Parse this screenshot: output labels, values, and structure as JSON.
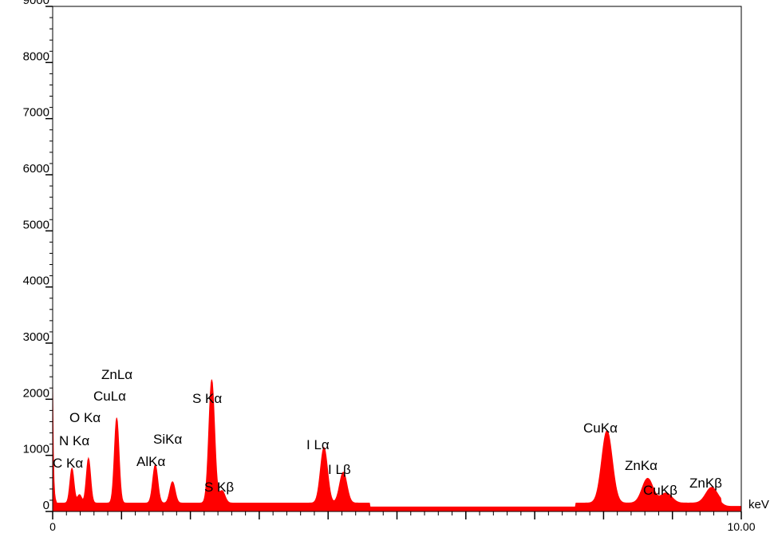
{
  "chart_data": {
    "type": "area",
    "title": "",
    "xlabel": "keV",
    "ylabel": "",
    "xlim": [
      0,
      10
    ],
    "ylim": [
      0,
      9000
    ],
    "y_ticks": [
      {
        "value": 0,
        "label": "0"
      },
      {
        "value": 1000,
        "label": "1000"
      },
      {
        "value": 2000,
        "label": "2000"
      },
      {
        "value": 3000,
        "label": "3000"
      },
      {
        "value": 4000,
        "label": "4000"
      },
      {
        "value": 5000,
        "label": "5000"
      },
      {
        "value": 6000,
        "label": "6000"
      },
      {
        "value": 7000,
        "label": "7000"
      },
      {
        "value": 8000,
        "label": "8000"
      },
      {
        "value": 9000,
        "label": "9000"
      }
    ],
    "x_tick_labels": [
      {
        "value": 0,
        "label": "0"
      },
      {
        "value": 10,
        "label": "10.00"
      }
    ],
    "x_unit_label": "keV",
    "grid": false,
    "color": "#ff0000",
    "baseline": 150,
    "peaks": [
      {
        "label": "C Kα",
        "energy": 0.28,
        "counts": 620
      },
      {
        "label": "N Kα",
        "energy": 0.39,
        "counts": 150
      },
      {
        "label": "O Kα",
        "energy": 0.52,
        "counts": 800
      },
      {
        "label": "ZnLα",
        "energy": 1.01,
        "counts": 0
      },
      {
        "label": "CuLα",
        "energy": 0.93,
        "counts": 1520
      },
      {
        "label": "AlKα",
        "energy": 1.49,
        "counts": 680
      },
      {
        "label": "SiKα",
        "energy": 1.74,
        "counts": 380
      },
      {
        "label": "S Kα",
        "energy": 2.31,
        "counts": 2200
      },
      {
        "label": "S Kβ",
        "energy": 2.46,
        "counts": 220
      },
      {
        "label": "I Lα",
        "energy": 3.94,
        "counts": 990
      },
      {
        "label": "I Lβ",
        "energy": 4.22,
        "counts": 550
      },
      {
        "label": "CuKα",
        "energy": 8.05,
        "counts": 1290
      },
      {
        "label": "ZnKα",
        "energy": 8.64,
        "counts": 440
      },
      {
        "label": "CuKβ",
        "energy": 8.91,
        "counts": 180
      },
      {
        "label": "ZnKβ",
        "energy": 9.57,
        "counts": 280
      }
    ]
  }
}
